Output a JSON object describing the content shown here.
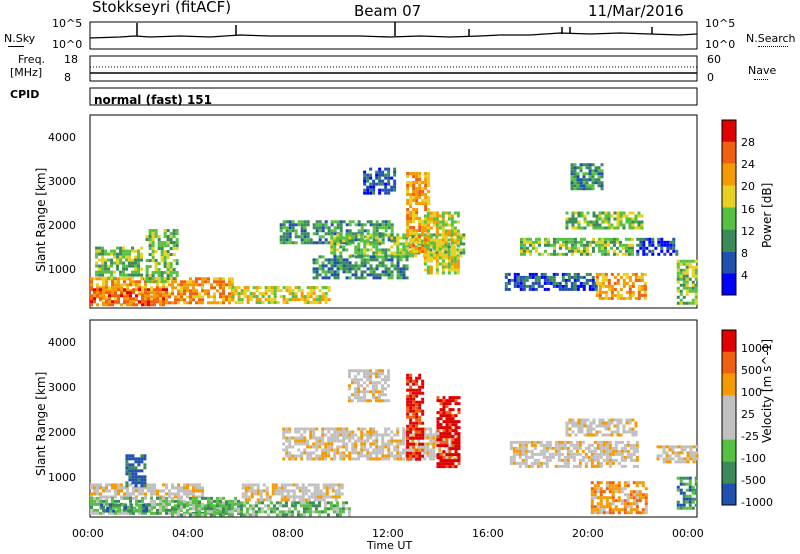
{
  "header": {
    "title": "Stokkseyri (fitACF)",
    "beam": "Beam 07",
    "date": "11/Mar/2016"
  },
  "panels": {
    "nsky_label": "N.Sky",
    "nsky_ticks": [
      "10^5",
      "10^0"
    ],
    "nsearch_label": "N.Search",
    "nsearch_ticks": [
      "10^5",
      "10^0"
    ],
    "freq_label_1": "Freq.",
    "freq_label_2": "[MHz]",
    "freq_ticks": [
      "18",
      "8"
    ],
    "nave_label": "Nave",
    "nave_ticks": [
      "60",
      "0"
    ],
    "cpid_label": "CPID",
    "cpid_text": "normal (fast) 151"
  },
  "colors": {
    "power": [
      "#0000ff",
      "#2050b0",
      "#3a8a5a",
      "#56c040",
      "#e8d020",
      "#f59a00",
      "#f06010",
      "#e00000"
    ],
    "velocity": [
      "#e00000",
      "#f06010",
      "#f59a00",
      "#c0c0c0",
      "#c0c0c0",
      "#56c040",
      "#3a8a5a",
      "#2050b0"
    ]
  },
  "chart_data": [
    {
      "type": "heatmap",
      "name": "power",
      "ylabel": "Slant Range [km]",
      "xlabel": "Time UT",
      "xticks": [
        "00:00",
        "04:00",
        "08:00",
        "12:00",
        "16:00",
        "20:00",
        "00:00"
      ],
      "yticks": [
        "1000",
        "2000",
        "3000",
        "4000"
      ],
      "ylim": [
        200,
        4600
      ],
      "colorbar_label": "Power [dB]",
      "colorbar_ticks": [
        "4",
        "8",
        "12",
        "16",
        "20",
        "24",
        "28"
      ],
      "regions": [
        {
          "t0": 0.0,
          "t1": 5.6,
          "r0": 300,
          "r1": 900,
          "c": 5
        },
        {
          "t0": 0.0,
          "t1": 3.0,
          "r0": 300,
          "r1": 650,
          "c": 6
        },
        {
          "t0": 0.2,
          "t1": 2.0,
          "r0": 900,
          "r1": 1600,
          "c": 3
        },
        {
          "t0": 2.2,
          "t1": 3.4,
          "r0": 800,
          "r1": 2000,
          "c": 3
        },
        {
          "t0": 5.6,
          "t1": 9.5,
          "r0": 300,
          "r1": 700,
          "c": 4
        },
        {
          "t0": 7.5,
          "t1": 12.0,
          "r0": 1700,
          "r1": 2200,
          "c": 2
        },
        {
          "t0": 9.5,
          "t1": 14.8,
          "r0": 1400,
          "r1": 1900,
          "c": 3
        },
        {
          "t0": 8.8,
          "t1": 12.5,
          "r0": 900,
          "r1": 1400,
          "c": 2
        },
        {
          "t0": 10.8,
          "t1": 12.0,
          "r0": 2800,
          "r1": 3400,
          "c": 1
        },
        {
          "t0": 12.5,
          "t1": 13.4,
          "r0": 1500,
          "r1": 3300,
          "c": 5
        },
        {
          "t0": 13.2,
          "t1": 14.6,
          "r0": 1000,
          "r1": 2400,
          "c": 4
        },
        {
          "t0": 16.4,
          "t1": 20.0,
          "r0": 600,
          "r1": 1000,
          "c": 1
        },
        {
          "t0": 17.0,
          "t1": 21.5,
          "r0": 1400,
          "r1": 1800,
          "c": 3
        },
        {
          "t0": 18.8,
          "t1": 21.8,
          "r0": 2000,
          "r1": 2400,
          "c": 3
        },
        {
          "t0": 19.0,
          "t1": 20.2,
          "r0": 2900,
          "r1": 3500,
          "c": 2
        },
        {
          "t0": 20.0,
          "t1": 22.0,
          "r0": 400,
          "r1": 1000,
          "c": 5
        },
        {
          "t0": 21.6,
          "t1": 23.2,
          "r0": 1400,
          "r1": 1800,
          "c": 1
        },
        {
          "t0": 23.2,
          "t1": 24.0,
          "r0": 300,
          "r1": 1300,
          "c": 3
        }
      ]
    },
    {
      "type": "heatmap",
      "name": "velocity",
      "ylabel": "Slant Range [km]",
      "xlabel": "Time UT",
      "xticks": [
        "00:00",
        "04:00",
        "08:00",
        "12:00",
        "16:00",
        "20:00",
        "00:00"
      ],
      "yticks": [
        "1000",
        "2000",
        "3000",
        "4000"
      ],
      "ylim": [
        200,
        4600
      ],
      "colorbar_label": "Velocity [m s^-1]",
      "colorbar_ticks": [
        "1000",
        "500",
        "100",
        "25",
        "-25",
        "-100",
        "-500",
        "-1000"
      ],
      "regions": [
        {
          "t0": 0.0,
          "t1": 4.5,
          "r0": 650,
          "r1": 950,
          "c": 3
        },
        {
          "t0": 0.0,
          "t1": 6.0,
          "r0": 300,
          "r1": 650,
          "c": 5
        },
        {
          "t0": 0.4,
          "t1": 2.5,
          "r0": 300,
          "r1": 500,
          "c": 6
        },
        {
          "t0": 1.4,
          "t1": 2.2,
          "r0": 900,
          "r1": 1600,
          "c": 7
        },
        {
          "t0": 3.2,
          "t1": 10.2,
          "r0": 250,
          "r1": 550,
          "c": 5
        },
        {
          "t0": 6.0,
          "t1": 10.0,
          "r0": 550,
          "r1": 950,
          "c": 3
        },
        {
          "t0": 7.6,
          "t1": 14.5,
          "r0": 1500,
          "r1": 2200,
          "c": 3
        },
        {
          "t0": 10.2,
          "t1": 11.8,
          "r0": 2800,
          "r1": 3500,
          "c": 3
        },
        {
          "t0": 12.5,
          "t1": 13.2,
          "r0": 1500,
          "r1": 3400,
          "c": 0
        },
        {
          "t0": 13.7,
          "t1": 14.6,
          "r0": 1300,
          "r1": 2900,
          "c": 0
        },
        {
          "t0": 16.6,
          "t1": 21.6,
          "r0": 1300,
          "r1": 1900,
          "c": 3
        },
        {
          "t0": 18.8,
          "t1": 21.6,
          "r0": 2000,
          "r1": 2400,
          "c": 3
        },
        {
          "t0": 19.8,
          "t1": 22.0,
          "r0": 300,
          "r1": 1000,
          "c": 2
        },
        {
          "t0": 22.4,
          "t1": 24.0,
          "r0": 1400,
          "r1": 1800,
          "c": 3
        },
        {
          "t0": 23.2,
          "t1": 24.0,
          "r0": 400,
          "r1": 1100,
          "c": 6
        }
      ]
    }
  ]
}
